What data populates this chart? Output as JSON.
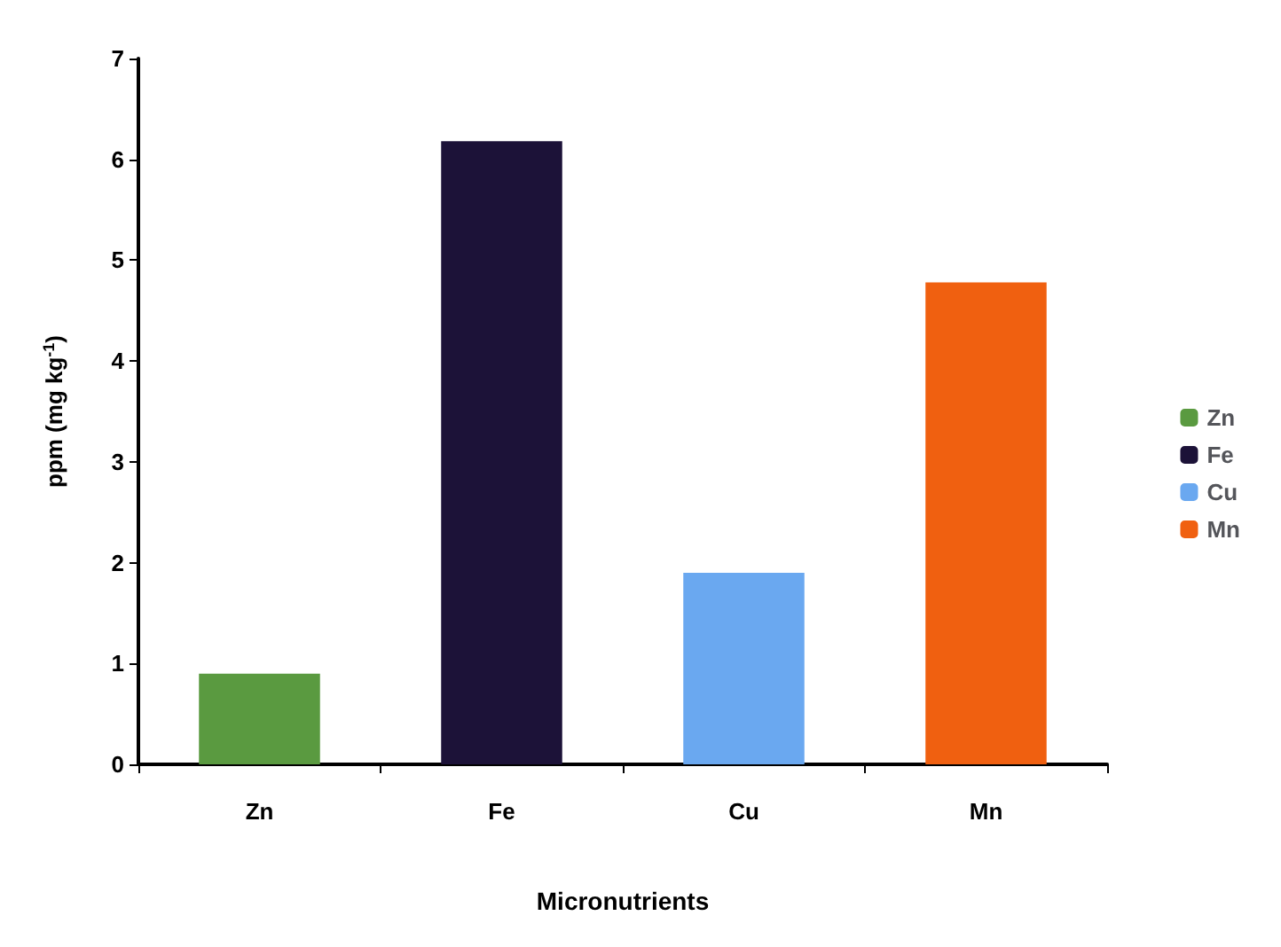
{
  "chart_data": {
    "type": "bar",
    "xlabel": "Micronutrients",
    "ylabel": "ppm (mg kg$^{-1}$)",
    "categories": [
      "Zn",
      "Fe",
      "Cu",
      "Mn"
    ],
    "series": [
      {
        "name": "Zn",
        "color": "#5a9a40",
        "values": [
          0.9,
          null,
          null,
          null
        ]
      },
      {
        "name": "Fe",
        "color": "#1c1238",
        "values": [
          null,
          6.18,
          null,
          null
        ]
      },
      {
        "name": "Cu",
        "color": "#6aa8f0",
        "values": [
          null,
          null,
          1.9,
          null
        ]
      },
      {
        "name": "Mn",
        "color": "#f06010",
        "values": [
          null,
          null,
          null,
          4.78
        ]
      }
    ],
    "ylim": [
      0,
      7
    ],
    "yticks": [
      0,
      1,
      2,
      3,
      4,
      5,
      6,
      7
    ],
    "grid": false,
    "legend": "right"
  }
}
